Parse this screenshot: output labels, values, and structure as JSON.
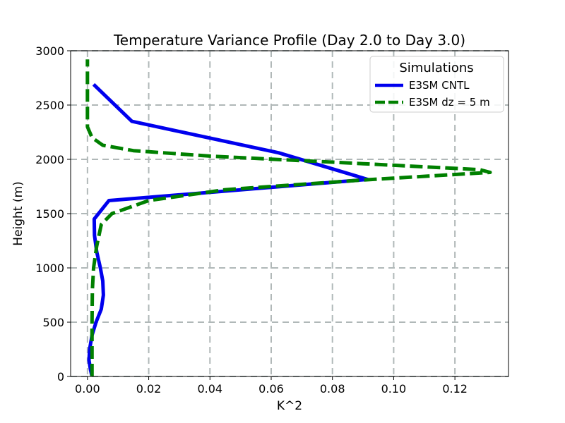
{
  "chart_data": {
    "type": "line",
    "title": "Temperature Variance Profile (Day 2.0 to Day 3.0)",
    "xlabel": "K^2",
    "ylabel": "Height (m)",
    "xlim": [
      -0.0055,
      0.1375
    ],
    "ylim": [
      0,
      3000
    ],
    "xticks": [
      0.0,
      0.02,
      0.04,
      0.06,
      0.08,
      0.1,
      0.12
    ],
    "xtick_labels": [
      "0.00",
      "0.02",
      "0.04",
      "0.06",
      "0.08",
      "0.10",
      "0.12"
    ],
    "yticks": [
      0,
      500,
      1000,
      1500,
      2000,
      2500,
      3000
    ],
    "ytick_labels": [
      "0",
      "500",
      "1000",
      "1500",
      "2000",
      "2500",
      "3000"
    ],
    "grid": true,
    "legend": {
      "title": "Simulations",
      "location": "top-right"
    },
    "series": [
      {
        "name": "E3SM CNTL",
        "color": "#0000ee",
        "style": "solid",
        "points": [
          [
            0.0015,
            0
          ],
          [
            0.001,
            60
          ],
          [
            0.0005,
            150
          ],
          [
            0.0007,
            250
          ],
          [
            0.0015,
            380
          ],
          [
            0.0028,
            500
          ],
          [
            0.0045,
            620
          ],
          [
            0.0052,
            750
          ],
          [
            0.005,
            880
          ],
          [
            0.0042,
            1000
          ],
          [
            0.003,
            1150
          ],
          [
            0.0023,
            1300
          ],
          [
            0.0022,
            1450
          ],
          [
            0.007,
            1620
          ],
          [
            0.0915,
            1815
          ],
          [
            0.0625,
            2060
          ],
          [
            0.0145,
            2350
          ],
          [
            0.002,
            2690
          ]
        ]
      },
      {
        "name": "E3SM dz = 5 m",
        "color": "#008000",
        "style": "dashed",
        "points": [
          [
            0.0015,
            0
          ],
          [
            0.0015,
            200
          ],
          [
            0.0015,
            500
          ],
          [
            0.0016,
            800
          ],
          [
            0.002,
            1000
          ],
          [
            0.003,
            1200
          ],
          [
            0.0045,
            1400
          ],
          [
            0.008,
            1500
          ],
          [
            0.02,
            1620
          ],
          [
            0.045,
            1720
          ],
          [
            0.09,
            1810
          ],
          [
            0.1315,
            1880
          ],
          [
            0.128,
            1905
          ],
          [
            0.09,
            1960
          ],
          [
            0.04,
            2030
          ],
          [
            0.015,
            2080
          ],
          [
            0.005,
            2130
          ],
          [
            0.0015,
            2200
          ],
          [
            0.0,
            2300
          ],
          [
            0.0,
            2500
          ],
          [
            0.0,
            2920
          ]
        ]
      }
    ]
  }
}
